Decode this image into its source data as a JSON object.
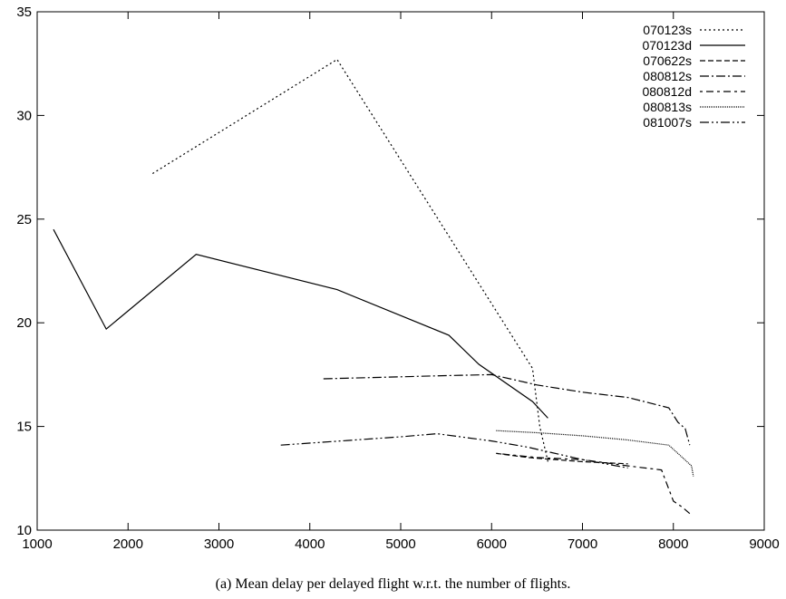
{
  "caption": "(a)  Mean delay per delayed flight w.r.t. the number of flights.",
  "chart_data": {
    "type": "line",
    "title": "",
    "xlabel": "",
    "ylabel": "",
    "xlim": [
      1000,
      9000
    ],
    "ylim": [
      10,
      35
    ],
    "xticks": [
      1000,
      2000,
      3000,
      4000,
      5000,
      6000,
      7000,
      8000,
      9000
    ],
    "yticks": [
      10,
      15,
      20,
      25,
      30,
      35
    ],
    "grid": false,
    "legend_position": "top-right",
    "series": [
      {
        "name": "070123s",
        "dash": "2,3",
        "x": [
          2270,
          4300,
          6450,
          6530,
          6620
        ],
        "y": [
          27.2,
          32.7,
          17.8,
          15.0,
          13.3
        ]
      },
      {
        "name": "070123d",
        "dash": "",
        "x": [
          1180,
          1760,
          2750,
          4300,
          5530,
          5860,
          6450,
          6620
        ],
        "y": [
          24.5,
          19.7,
          23.3,
          21.6,
          19.4,
          18.0,
          16.2,
          15.4
        ]
      },
      {
        "name": "070622s",
        "dash": "6,3",
        "x": [
          6050,
          6400,
          7000,
          7500
        ],
        "y": [
          13.7,
          13.5,
          13.3,
          13.2
        ]
      },
      {
        "name": "080812s",
        "dash": "10,3,2,3",
        "x": [
          4150,
          5500,
          6000,
          6500,
          7000,
          7500,
          7950,
          8050,
          8130,
          8180
        ],
        "y": [
          17.3,
          17.45,
          17.5,
          17.0,
          16.65,
          16.4,
          15.9,
          15.2,
          14.9,
          14.1
        ]
      },
      {
        "name": "080812d",
        "dash": "3,4,8,4",
        "x": [
          6050,
          6500,
          7000,
          7500,
          7870,
          8000,
          8100,
          8180
        ],
        "y": [
          13.7,
          13.5,
          13.4,
          13.1,
          12.9,
          11.4,
          11.1,
          10.8
        ]
      },
      {
        "name": "080813s",
        "dash": "1,1",
        "x": [
          6050,
          6500,
          7000,
          7500,
          7950,
          8100,
          8200,
          8220
        ],
        "y": [
          14.8,
          14.7,
          14.55,
          14.35,
          14.1,
          13.5,
          13.1,
          12.6
        ]
      },
      {
        "name": "081007s",
        "dash": "10,3,2,3,2,3",
        "x": [
          3680,
          5000,
          5400,
          6000,
          6400,
          7000,
          7500
        ],
        "y": [
          14.1,
          14.5,
          14.65,
          14.3,
          14.0,
          13.4,
          13.0
        ]
      }
    ]
  }
}
